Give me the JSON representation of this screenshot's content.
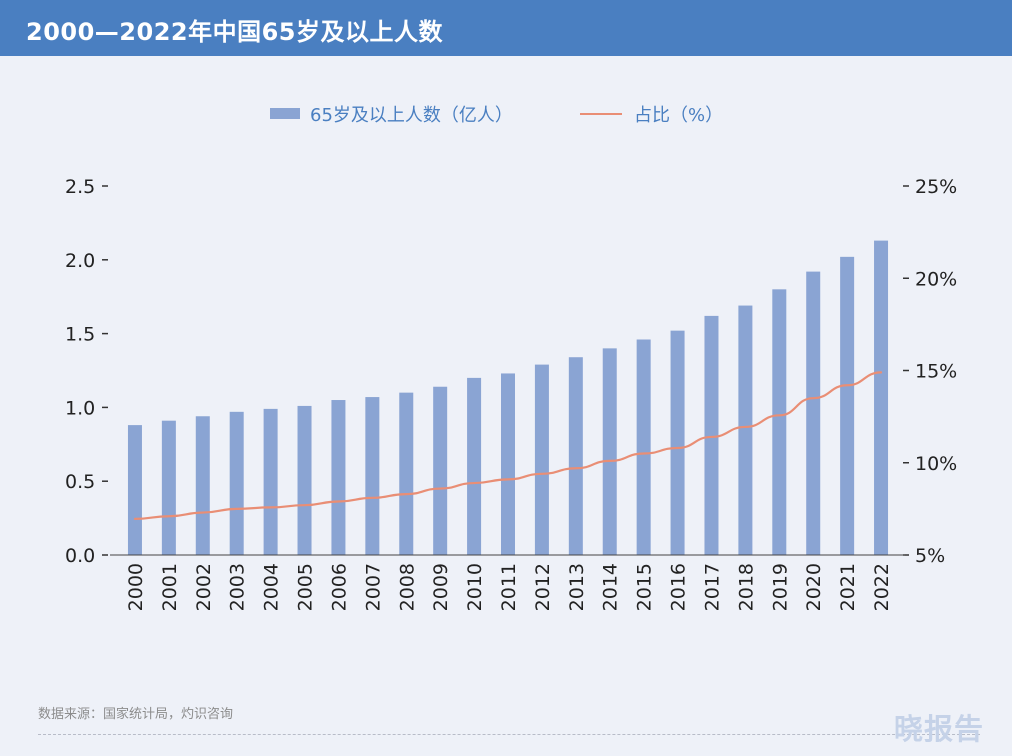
{
  "header": {
    "title": "2000—2022年中国65岁及以上人数"
  },
  "colors": {
    "bar": "#8aa4d3",
    "line": "#e98e75",
    "title_bg": "#4a7fc1",
    "axis_text": "#222222",
    "legend_text": "#4a7fc1"
  },
  "chart_data": {
    "type": "bar+line",
    "categories": [
      "2000",
      "2001",
      "2002",
      "2003",
      "2004",
      "2005",
      "2006",
      "2007",
      "2008",
      "2009",
      "2010",
      "2011",
      "2012",
      "2013",
      "2014",
      "2015",
      "2016",
      "2017",
      "2018",
      "2019",
      "2020",
      "2021",
      "2022"
    ],
    "series": [
      {
        "name": "65岁及以上人数（亿人）",
        "type": "bar",
        "axis": "left",
        "values": [
          0.88,
          0.91,
          0.94,
          0.97,
          0.99,
          1.01,
          1.05,
          1.07,
          1.1,
          1.14,
          1.2,
          1.23,
          1.29,
          1.34,
          1.4,
          1.46,
          1.52,
          1.62,
          1.69,
          1.8,
          1.92,
          2.02,
          2.13
        ]
      },
      {
        "name": "占比（%）",
        "type": "line",
        "axis": "right",
        "values": [
          6.96,
          7.1,
          7.3,
          7.5,
          7.58,
          7.7,
          7.9,
          8.1,
          8.3,
          8.6,
          8.9,
          9.1,
          9.4,
          9.7,
          10.1,
          10.5,
          10.8,
          11.4,
          11.94,
          12.57,
          13.5,
          14.2,
          14.9
        ]
      }
    ],
    "left_axis": {
      "min": 0,
      "max": 2.5,
      "ticks": [
        "0.0",
        "0.5",
        "1.0",
        "1.5",
        "2.0",
        "2.5"
      ]
    },
    "right_axis": {
      "min": 5,
      "max": 25,
      "ticks": [
        "5%",
        "10%",
        "15%",
        "20%",
        "25%"
      ]
    },
    "legend_position": "top-center"
  },
  "footer": {
    "source": "数据来源：国家统计局，灼识咨询",
    "brand": "晓报告"
  }
}
